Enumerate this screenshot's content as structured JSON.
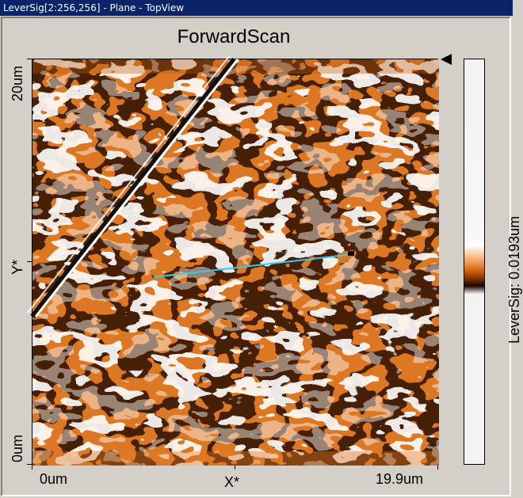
{
  "window": {
    "title": "LeverSig[2:256,256] - Plane - TopView"
  },
  "plot": {
    "title": "ForwardScan",
    "y_axis": {
      "label": "Y*",
      "top_tick": "20um",
      "bottom_tick": "0um"
    },
    "x_axis": {
      "label": "X*",
      "left_tick": "0um",
      "right_tick": "19.9um"
    }
  },
  "colorbar": {
    "label": "LeverSig: 0.0193um"
  },
  "colors": {
    "titlebar": "#0a246a",
    "image_orange": "#d66a12",
    "profile_line": "#33ccee"
  }
}
